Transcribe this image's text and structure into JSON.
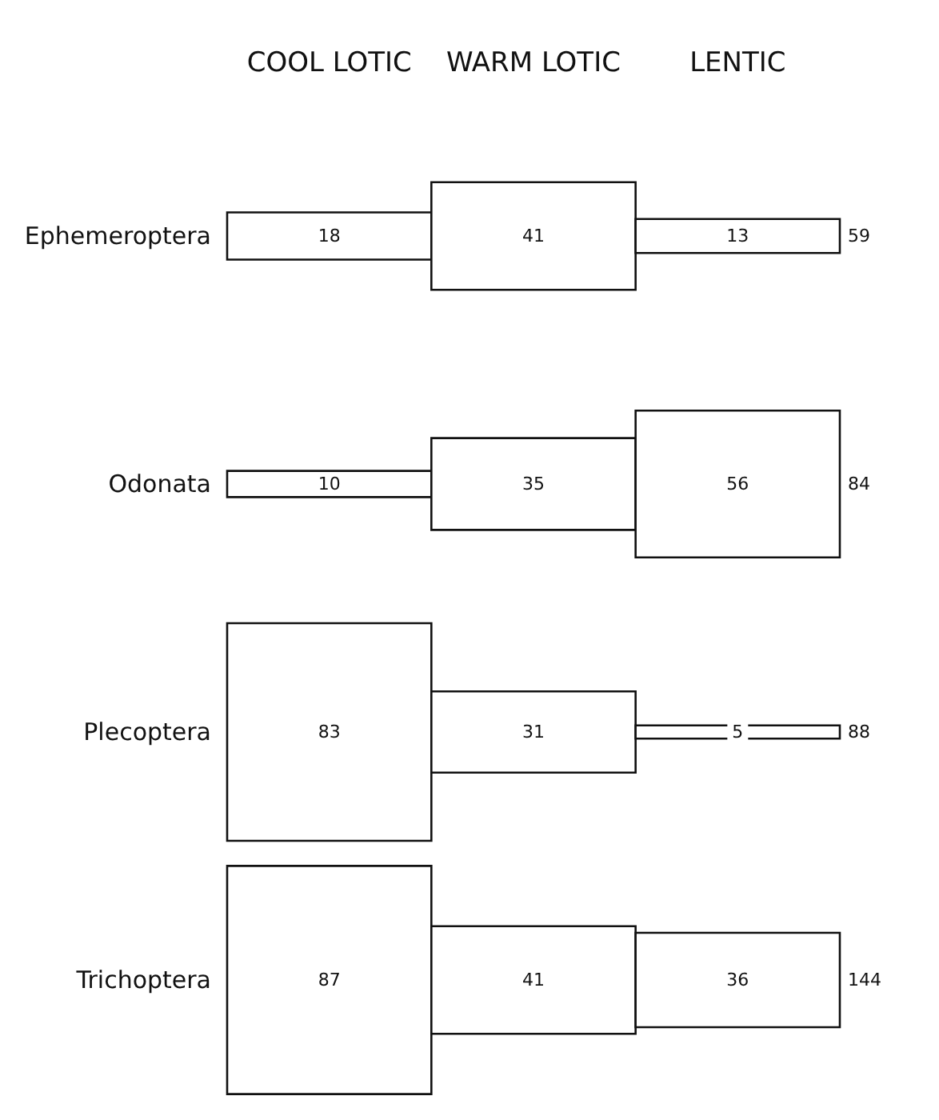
{
  "chart_data": {
    "type": "other",
    "categories": [
      "COOL LOTIC",
      "WARM LOTIC",
      "LENTIC"
    ],
    "series": [
      {
        "name": "Ephemeroptera",
        "values": [
          18,
          41,
          13
        ]
      },
      {
        "name": "Odonata",
        "values": [
          10,
          35,
          56
        ]
      },
      {
        "name": "Plecoptera",
        "values": [
          83,
          31,
          5
        ]
      },
      {
        "name": "Trichoptera",
        "values": [
          87,
          41,
          36
        ]
      }
    ],
    "totals": [
      "59",
      "84",
      "88",
      "144"
    ],
    "data_labels": true
  }
}
